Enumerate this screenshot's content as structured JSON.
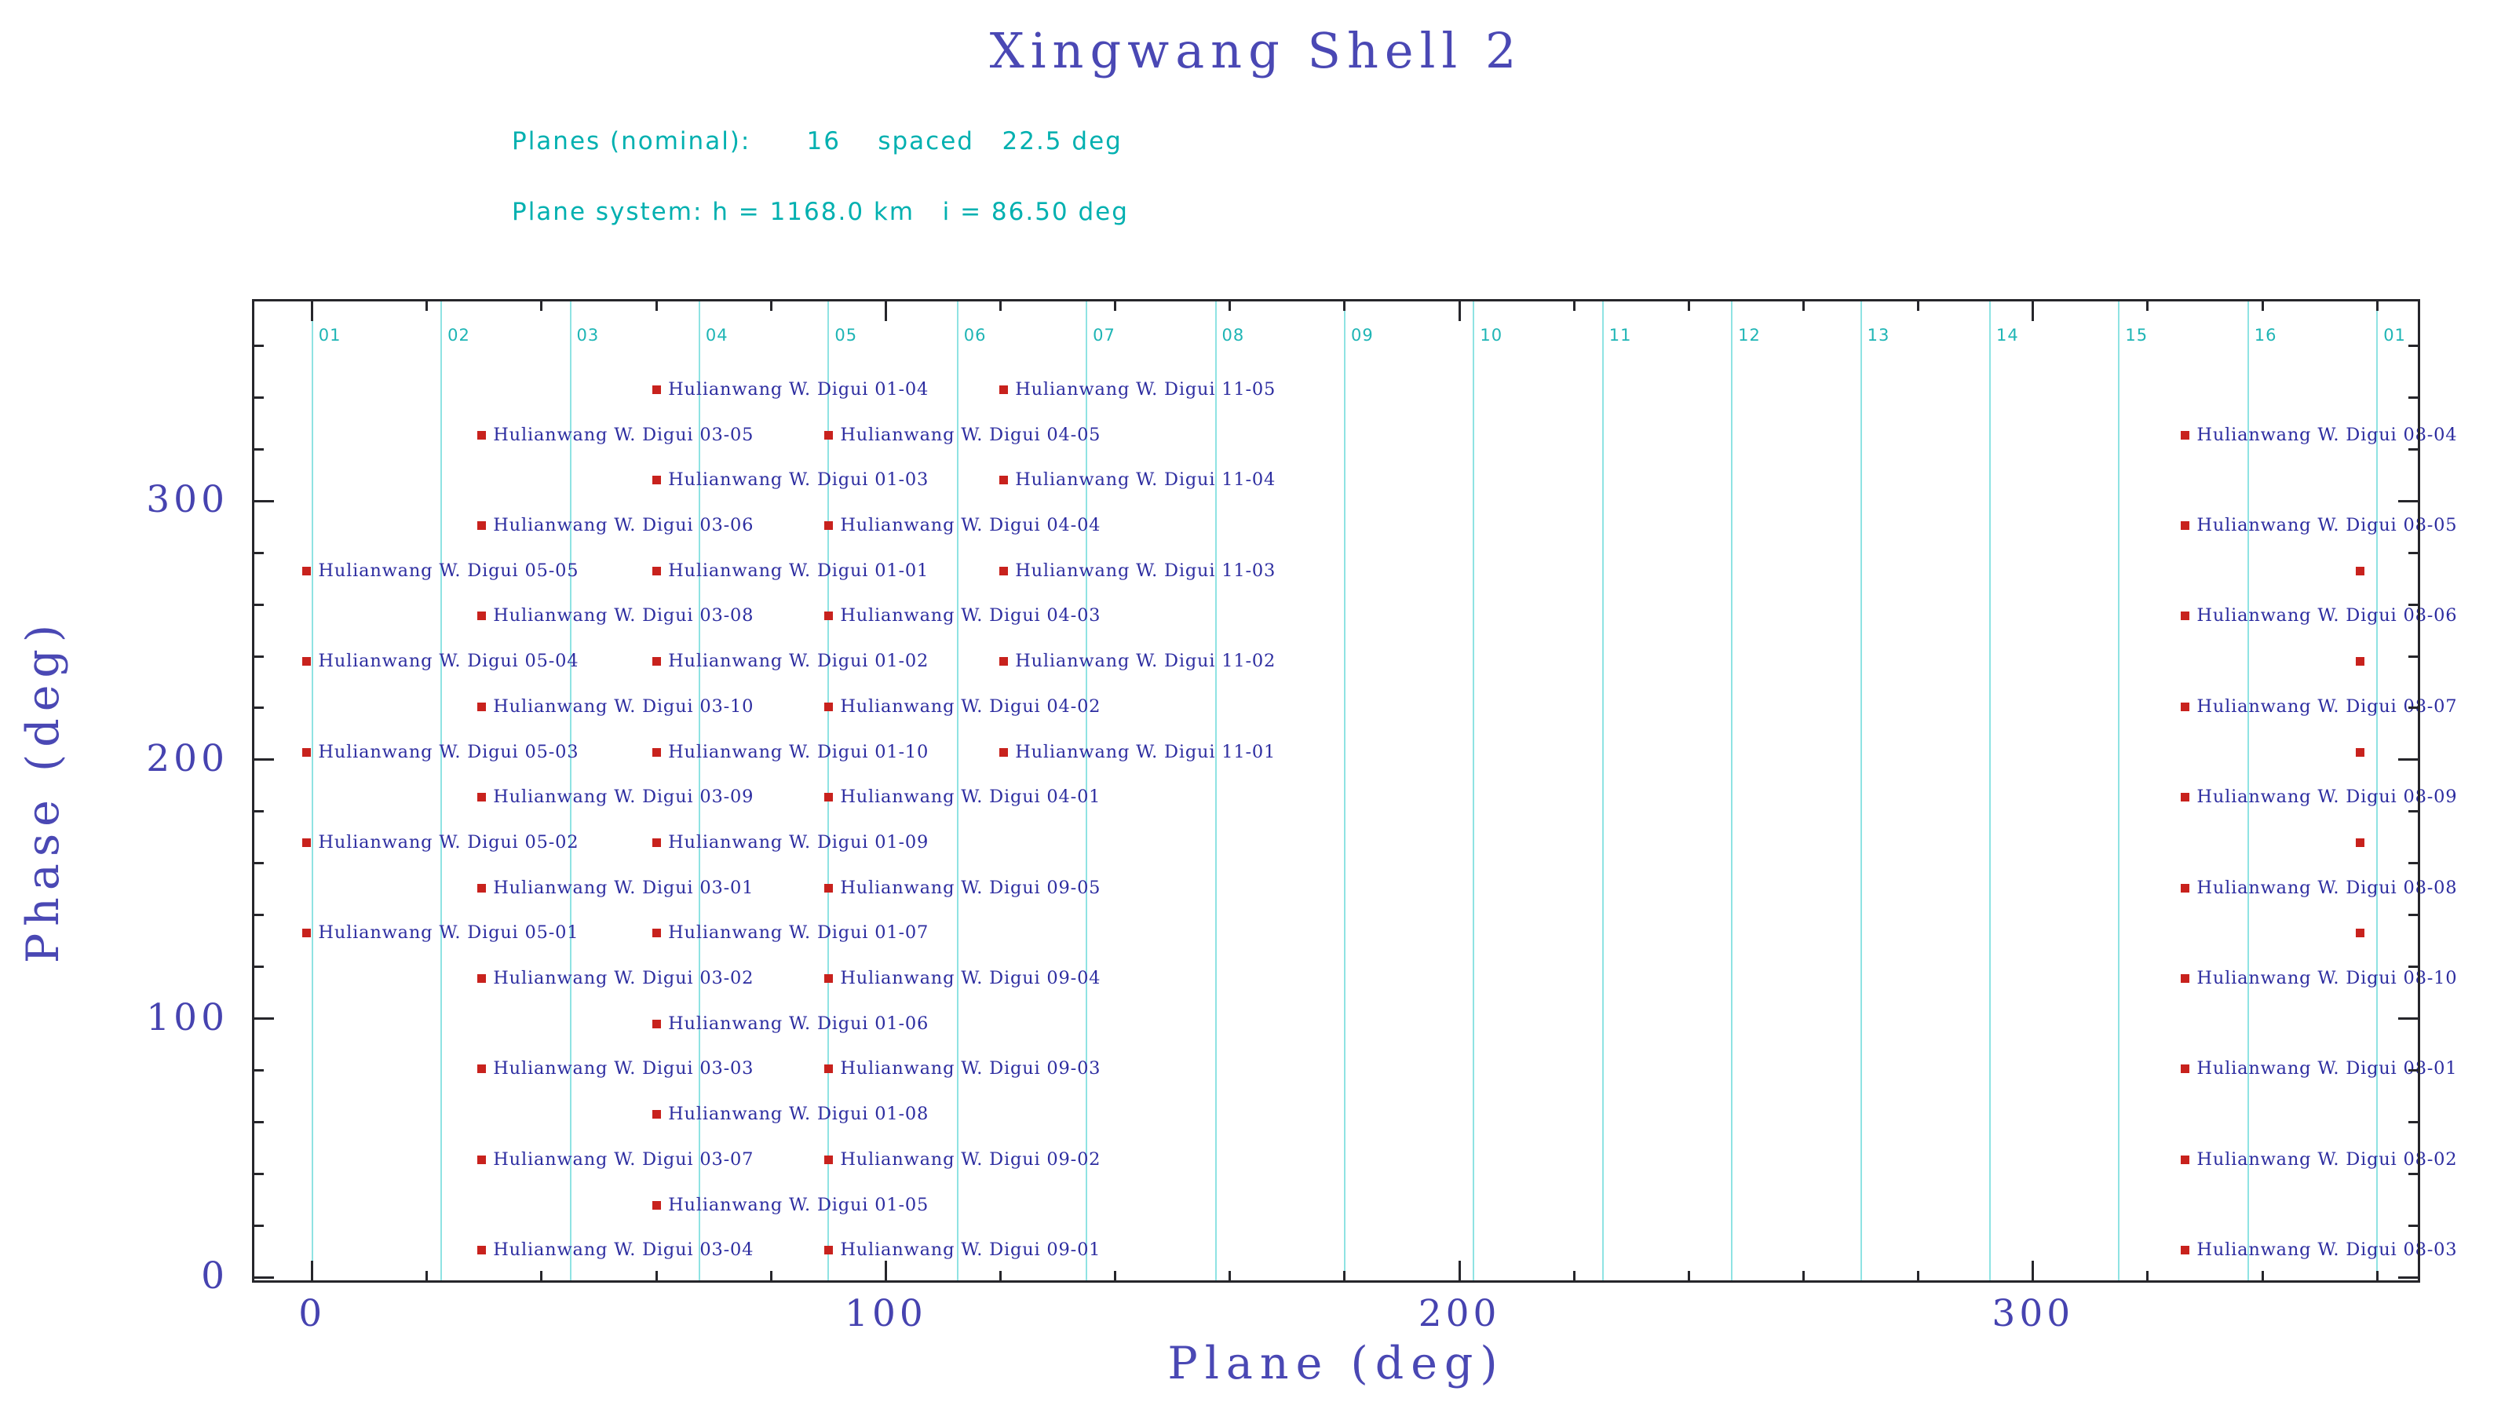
{
  "header": {
    "title": "Xingwang Shell 2",
    "info_lines": [
      "Planes (nominal):      16    spaced   22.5 deg",
      "Plane system: h = 1168.0 km   i = 86.50 deg"
    ]
  },
  "colors": {
    "title_blue": "#4a48b4",
    "label_navy": "#2d2da0",
    "info_cyan": "#00b0b0",
    "plane_line_cyan": "#8fe3e3",
    "marker_red": "#c8221d",
    "axis_frame": "#26262b",
    "background": "#ffffff"
  },
  "chart_data": {
    "type": "scatter",
    "title": "Xingwang Shell 2",
    "xlabel": "Plane (deg)",
    "ylabel": "Phase (deg)",
    "xlim": [
      -10.5,
      367.5
    ],
    "ylim": [
      -2,
      378
    ],
    "x_ticks": [
      0,
      100,
      200,
      300
    ],
    "y_ticks": [
      0,
      100,
      200,
      300
    ],
    "minor_tick_step": 20,
    "grid": "vertical plane lines only",
    "legend": "none",
    "plane_lines": {
      "start_deg": 0,
      "spacing_deg": 22.5,
      "labels": [
        "01",
        "02",
        "03",
        "04",
        "05",
        "06",
        "07",
        "08",
        "09",
        "10",
        "11",
        "12",
        "13",
        "14",
        "15",
        "16",
        "01"
      ]
    },
    "points": [
      {
        "label": "Hulianwang W. Digui 05-05",
        "x": -1,
        "y": 273
      },
      {
        "label": "Hulianwang W. Digui 05-04",
        "x": -1,
        "y": 238
      },
      {
        "label": "Hulianwang W. Digui 05-03",
        "x": -1,
        "y": 203
      },
      {
        "label": "Hulianwang W. Digui 05-02",
        "x": -1,
        "y": 168
      },
      {
        "label": "Hulianwang W. Digui 05-01",
        "x": -1,
        "y": 133
      },
      {
        "label": "Hulianwang W. Digui 03-05",
        "x": 29.5,
        "y": 325.5
      },
      {
        "label": "Hulianwang W. Digui 03-06",
        "x": 29.5,
        "y": 290.5
      },
      {
        "label": "Hulianwang W. Digui 03-08",
        "x": 29.5,
        "y": 255.5
      },
      {
        "label": "Hulianwang W. Digui 03-10",
        "x": 29.5,
        "y": 220.5
      },
      {
        "label": "Hulianwang W. Digui 03-09",
        "x": 29.5,
        "y": 185.5
      },
      {
        "label": "Hulianwang W. Digui 03-01",
        "x": 29.5,
        "y": 150.5
      },
      {
        "label": "Hulianwang W. Digui 03-02",
        "x": 29.5,
        "y": 115.5
      },
      {
        "label": "Hulianwang W. Digui 03-03",
        "x": 29.5,
        "y": 80.5
      },
      {
        "label": "Hulianwang W. Digui 03-07",
        "x": 29.5,
        "y": 45.5
      },
      {
        "label": "Hulianwang W. Digui 03-04",
        "x": 29.5,
        "y": 10.5
      },
      {
        "label": "Hulianwang W. Digui 01-04",
        "x": 60,
        "y": 343
      },
      {
        "label": "Hulianwang W. Digui 01-03",
        "x": 60,
        "y": 308
      },
      {
        "label": "Hulianwang W. Digui 01-01",
        "x": 60,
        "y": 273
      },
      {
        "label": "Hulianwang W. Digui 01-02",
        "x": 60,
        "y": 238
      },
      {
        "label": "Hulianwang W. Digui 01-10",
        "x": 60,
        "y": 203
      },
      {
        "label": "Hulianwang W. Digui 01-09",
        "x": 60,
        "y": 168
      },
      {
        "label": "Hulianwang W. Digui 01-07",
        "x": 60,
        "y": 133
      },
      {
        "label": "Hulianwang W. Digui 01-06",
        "x": 60,
        "y": 98
      },
      {
        "label": "Hulianwang W. Digui 01-08",
        "x": 60,
        "y": 63
      },
      {
        "label": "Hulianwang W. Digui 01-05",
        "x": 60,
        "y": 28
      },
      {
        "label": "Hulianwang W. Digui 04-05",
        "x": 90,
        "y": 325.5
      },
      {
        "label": "Hulianwang W. Digui 04-04",
        "x": 90,
        "y": 290.5
      },
      {
        "label": "Hulianwang W. Digui 04-03",
        "x": 90,
        "y": 255.5
      },
      {
        "label": "Hulianwang W. Digui 04-02",
        "x": 90,
        "y": 220.5
      },
      {
        "label": "Hulianwang W. Digui 04-01",
        "x": 90,
        "y": 185.5
      },
      {
        "label": "Hulianwang W. Digui 09-05",
        "x": 90,
        "y": 150.5
      },
      {
        "label": "Hulianwang W. Digui 09-04",
        "x": 90,
        "y": 115.5
      },
      {
        "label": "Hulianwang W. Digui 09-03",
        "x": 90,
        "y": 80.5
      },
      {
        "label": "Hulianwang W. Digui 09-02",
        "x": 90,
        "y": 45.5
      },
      {
        "label": "Hulianwang W. Digui 09-01",
        "x": 90,
        "y": 10.5
      },
      {
        "label": "Hulianwang W. Digui 11-05",
        "x": 120.5,
        "y": 343
      },
      {
        "label": "Hulianwang W. Digui 11-04",
        "x": 120.5,
        "y": 308
      },
      {
        "label": "Hulianwang W. Digui 11-03",
        "x": 120.5,
        "y": 273
      },
      {
        "label": "Hulianwang W. Digui 11-02",
        "x": 120.5,
        "y": 238
      },
      {
        "label": "Hulianwang W. Digui 11-01",
        "x": 120.5,
        "y": 203
      },
      {
        "label": "Hulianwang W. Digui 08-04",
        "x": 326.5,
        "y": 325.5
      },
      {
        "label": "Hulianwang W. Digui 08-05",
        "x": 326.5,
        "y": 290.5
      },
      {
        "label": "Hulianwang W. Digui 08-06",
        "x": 326.5,
        "y": 255.5
      },
      {
        "label": "Hulianwang W. Digui 08-07",
        "x": 326.5,
        "y": 220.5
      },
      {
        "label": "Hulianwang W. Digui 08-09",
        "x": 326.5,
        "y": 185.5
      },
      {
        "label": "Hulianwang W. Digui 08-08",
        "x": 326.5,
        "y": 150.5
      },
      {
        "label": "Hulianwang W. Digui 08-10",
        "x": 326.5,
        "y": 115.5
      },
      {
        "label": "Hulianwang W. Digui 08-01",
        "x": 326.5,
        "y": 80.5
      },
      {
        "label": "Hulianwang W. Digui 08-02",
        "x": 326.5,
        "y": 45.5
      },
      {
        "label": "Hulianwang W. Digui 08-03",
        "x": 326.5,
        "y": 10.5
      },
      {
        "label": "",
        "x": 357,
        "y": 273
      },
      {
        "label": "",
        "x": 357,
        "y": 238
      },
      {
        "label": "",
        "x": 357,
        "y": 203
      },
      {
        "label": "",
        "x": 357,
        "y": 168
      },
      {
        "label": "",
        "x": 357,
        "y": 133
      }
    ]
  }
}
